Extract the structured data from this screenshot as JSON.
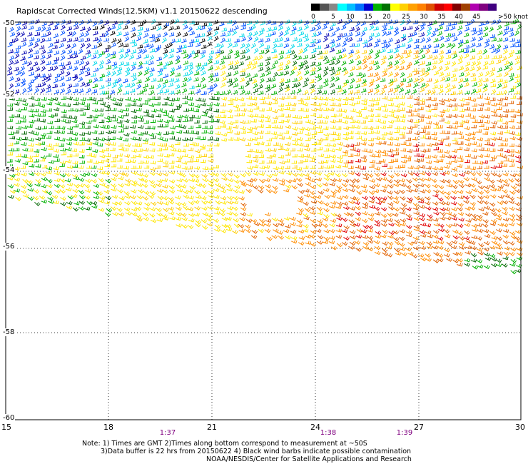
{
  "title": "Rapidscat Corrected Winds(12.5KM) v1.1 20150622 descending",
  "legend": {
    "colors": [
      "#000000",
      "#555555",
      "#888888",
      "#00ffff",
      "#00bfff",
      "#0070ff",
      "#0000d0",
      "#00b000",
      "#007000",
      "#ffff00",
      "#ffd000",
      "#ffa000",
      "#ff8000",
      "#e05000",
      "#d00000",
      "#ff0000",
      "#800000",
      "#a04000",
      "#b000b0",
      "#800080",
      "#400080"
    ],
    "ticks": [
      "0",
      "5",
      "10",
      "15",
      "20",
      "25",
      "30",
      "35",
      "40",
      "45",
      ">50 knots"
    ]
  },
  "axes": {
    "x_ticks": [
      "15",
      "18",
      "21",
      "24",
      "27",
      "30"
    ],
    "y_ticks": [
      "-50",
      "-52",
      "-54",
      "-56",
      "-58",
      "-60"
    ]
  },
  "times": [
    "1:37",
    "1:38",
    "1:39"
  ],
  "notes": {
    "line1": "Note: 1) Times are GMT 2)Times along bottom correspond to measurement at ~50S",
    "line2": "3)Data buffer is 22 hrs from 20150622 4) Black wind barbs indicate possible contamination",
    "line3": "NOAA/NESDIS/Center for Satellite Applications and Research"
  },
  "wind_colors": {
    "black": "#000000",
    "cyan": "#00d8e8",
    "blue": "#0050ff",
    "darkblue": "#0000b0",
    "green": "#00b000",
    "darkgreen": "#006400",
    "yellow": "#ffe600",
    "gold": "#ffcc00",
    "orange": "#ff8c00",
    "darkorange": "#e06000",
    "red": "#e00000",
    "magenta": "#ff00ff"
  }
}
